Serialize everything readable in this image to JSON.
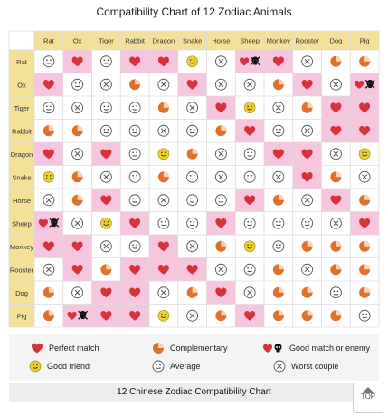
{
  "chart_data": {
    "type": "table",
    "title": "Compatibility Chart of 12 Zodiac Animals",
    "caption": "12 Chinese Zodiac Compatibility Chart",
    "animals": [
      "Rat",
      "Ox",
      "Tiger",
      "Rabbit",
      "Dragon",
      "Snake",
      "Horse",
      "Sheep",
      "Monkey",
      "Rooster",
      "Dog",
      "Pig"
    ],
    "legend": [
      {
        "key": "perfect",
        "label": "Perfect match",
        "icon": "heart-icon"
      },
      {
        "key": "complementary",
        "label": "Complementary",
        "icon": "pie-icon"
      },
      {
        "key": "goodenemy",
        "label": "Good match or enemy",
        "icon": "heart-skull-icon"
      },
      {
        "key": "friend",
        "label": "Good friend",
        "icon": "smiley-icon"
      },
      {
        "key": "average",
        "label": "Average",
        "icon": "neutral-face-icon"
      },
      {
        "key": "worst",
        "label": "Worst couple",
        "icon": "cross-circle-icon"
      }
    ],
    "matrix": [
      [
        "average",
        "perfect",
        "average",
        "perfect",
        "perfect",
        "friend",
        "worst",
        "goodenemy",
        "perfect",
        "worst",
        "complementary",
        "complementary"
      ],
      [
        "perfect",
        "average",
        "worst",
        "complementary",
        "worst",
        "perfect",
        "worst",
        "worst",
        "complementary",
        "perfect",
        "worst",
        "goodenemy"
      ],
      [
        "average",
        "worst",
        "average",
        "average",
        "complementary",
        "worst",
        "perfect",
        "friend",
        "worst",
        "complementary",
        "perfect",
        "perfect"
      ],
      [
        "complementary",
        "complementary",
        "average",
        "average",
        "worst",
        "average",
        "complementary",
        "perfect",
        "average",
        "worst",
        "perfect",
        "perfect"
      ],
      [
        "perfect",
        "worst",
        "perfect",
        "average",
        "friend",
        "complementary",
        "worst",
        "average",
        "perfect",
        "perfect",
        "worst",
        "friend"
      ],
      [
        "friend",
        "complementary",
        "worst",
        "average",
        "complementary",
        "average",
        "worst",
        "average",
        "worst",
        "perfect",
        "complementary",
        "worst"
      ],
      [
        "worst",
        "complementary",
        "perfect",
        "average",
        "worst",
        "average",
        "average",
        "perfect",
        "complementary",
        "worst",
        "perfect",
        "complementary"
      ],
      [
        "goodenemy",
        "worst",
        "friend",
        "perfect",
        "average",
        "average",
        "perfect",
        "average",
        "average",
        "average",
        "worst",
        "perfect"
      ],
      [
        "perfect",
        "perfect",
        "worst",
        "average",
        "perfect",
        "worst",
        "complementary",
        "friend",
        "average",
        "complementary",
        "complementary",
        "complementary"
      ],
      [
        "worst",
        "perfect",
        "complementary",
        "perfect",
        "perfect",
        "perfect",
        "worst",
        "average",
        "complementary",
        "worst",
        "complementary",
        "complementary"
      ],
      [
        "complementary",
        "worst",
        "perfect",
        "perfect",
        "worst",
        "complementary",
        "perfect",
        "worst",
        "complementary",
        "complementary",
        "average",
        "complementary"
      ],
      [
        "complementary",
        "goodenemy",
        "perfect",
        "perfect",
        "friend",
        "worst",
        "complementary",
        "perfect",
        "complementary",
        "complementary",
        "complementary",
        "average"
      ]
    ],
    "highlight_color": "#f5c6de",
    "header_color": "#f5e09a",
    "heart_color": "#d8323c",
    "pie_color": "#e0702a",
    "smiley_color": "#ecd12d"
  },
  "top_button": {
    "label": "TOP"
  }
}
